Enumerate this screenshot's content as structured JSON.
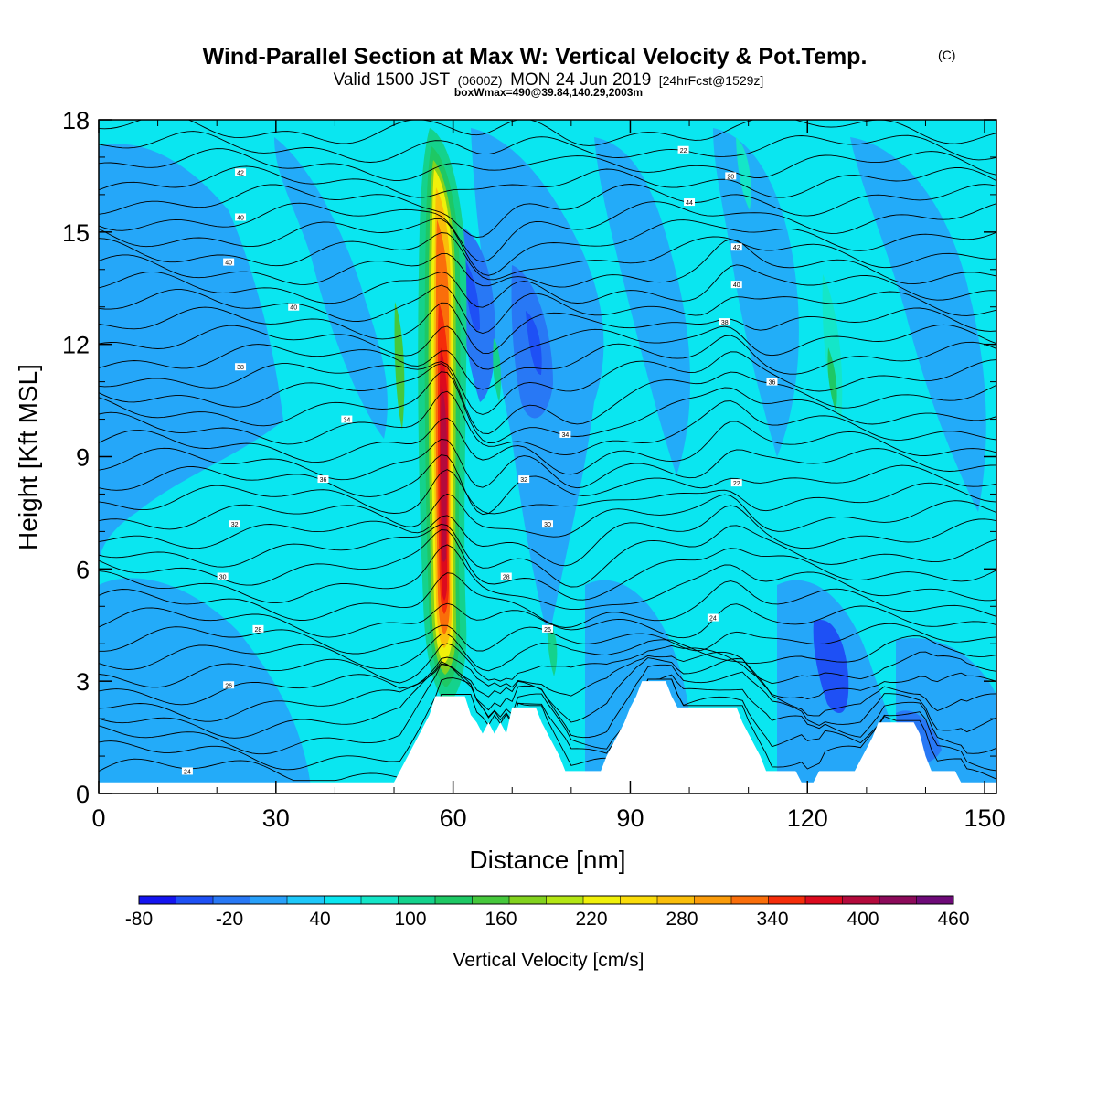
{
  "chart_data": {
    "type": "heatmap",
    "title": "Wind-Parallel Section at Max W: Vertical Velocity & Pot.Temp.",
    "title_mark": "(C)",
    "subtitle": {
      "part1": "Valid 1500 JST",
      "part2": "(0600Z)",
      "part3": "MON 24 Jun 2019",
      "part4": "[24hrFcst@1529z]"
    },
    "subtitle2": "boxWmax=490@39.84,140.29,2003m",
    "xlabel": "Distance [nm]",
    "ylabel": "Height [Kft MSL]",
    "xlim": [
      0,
      152
    ],
    "ylim": [
      0,
      18
    ],
    "xticks": [
      0,
      30,
      60,
      90,
      120,
      150
    ],
    "yticks": [
      0,
      3,
      6,
      9,
      12,
      15,
      18
    ],
    "grid": false,
    "updraft": {
      "center_x": 59,
      "core_height_kft": 7.5,
      "peak_value": 400,
      "top_kft": 17
    },
    "downdrafts": [
      {
        "x": 63,
        "y": 13.5,
        "value": -50
      },
      {
        "x": 73,
        "y": 11.5,
        "value": -50
      },
      {
        "x": 124,
        "y": 3.5,
        "value": -50
      },
      {
        "x": 140,
        "y": 3.0,
        "value": -40
      }
    ],
    "terrain": [
      [
        0,
        0.3
      ],
      [
        50,
        0.3
      ],
      [
        51,
        0.6
      ],
      [
        52,
        0.9
      ],
      [
        53,
        1.2
      ],
      [
        54,
        1.5
      ],
      [
        55,
        1.8
      ],
      [
        56,
        2.1
      ],
      [
        57,
        2.6
      ],
      [
        62,
        2.6
      ],
      [
        63,
        2.1
      ],
      [
        64,
        1.9
      ],
      [
        65,
        1.6
      ],
      [
        66,
        1.9
      ],
      [
        67,
        1.6
      ],
      [
        68,
        1.9
      ],
      [
        69,
        1.6
      ],
      [
        70,
        2.3
      ],
      [
        74,
        2.3
      ],
      [
        75,
        1.9
      ],
      [
        76,
        1.6
      ],
      [
        77,
        1.3
      ],
      [
        78,
        1.0
      ],
      [
        79,
        0.6
      ],
      [
        85,
        0.6
      ],
      [
        86,
        1.0
      ],
      [
        87,
        1.3
      ],
      [
        88,
        1.6
      ],
      [
        89,
        1.9
      ],
      [
        90,
        2.3
      ],
      [
        91,
        2.6
      ],
      [
        92,
        3.0
      ],
      [
        96,
        3.0
      ],
      [
        97,
        2.6
      ],
      [
        98,
        2.3
      ],
      [
        108,
        2.3
      ],
      [
        109,
        1.9
      ],
      [
        110,
        1.6
      ],
      [
        111,
        1.3
      ],
      [
        112,
        1.0
      ],
      [
        113,
        0.6
      ],
      [
        118,
        0.6
      ],
      [
        119,
        0.3
      ],
      [
        121,
        0.3
      ],
      [
        122,
        0.6
      ],
      [
        128,
        0.6
      ],
      [
        129,
        0.9
      ],
      [
        130,
        1.2
      ],
      [
        131,
        1.5
      ],
      [
        132,
        1.9
      ],
      [
        138,
        1.9
      ],
      [
        139,
        1.6
      ],
      [
        140,
        1.0
      ],
      [
        141,
        0.6
      ],
      [
        145,
        0.6
      ],
      [
        146,
        0.3
      ],
      [
        152,
        0.3
      ]
    ],
    "isentrope_labels": [
      "42",
      "40",
      "40",
      "40",
      "38",
      "34",
      "36",
      "32",
      "30",
      "28",
      "26",
      "24",
      "22",
      "20",
      "44",
      "42",
      "40",
      "38",
      "36",
      "34",
      "32",
      "30",
      "28",
      "26",
      "24",
      "22"
    ],
    "colorbar": {
      "label": "Vertical Velocity [cm/s]",
      "ticks": [
        "-80",
        "-20",
        "40",
        "100",
        "160",
        "220",
        "280",
        "340",
        "400",
        "460"
      ],
      "colors": [
        "#1414f0",
        "#1e50f5",
        "#2878f5",
        "#28a0fa",
        "#1ec8fa",
        "#0ae6f0",
        "#14e6c8",
        "#14d28c",
        "#1ec864",
        "#46c83c",
        "#82d21e",
        "#b4e614",
        "#f0f00a",
        "#fadc0a",
        "#fabe0a",
        "#fa9b0a",
        "#fa6e0a",
        "#f52d0a",
        "#dc0a1e",
        "#b40a3c",
        "#8c0a5a",
        "#6e0a78"
      ]
    }
  }
}
